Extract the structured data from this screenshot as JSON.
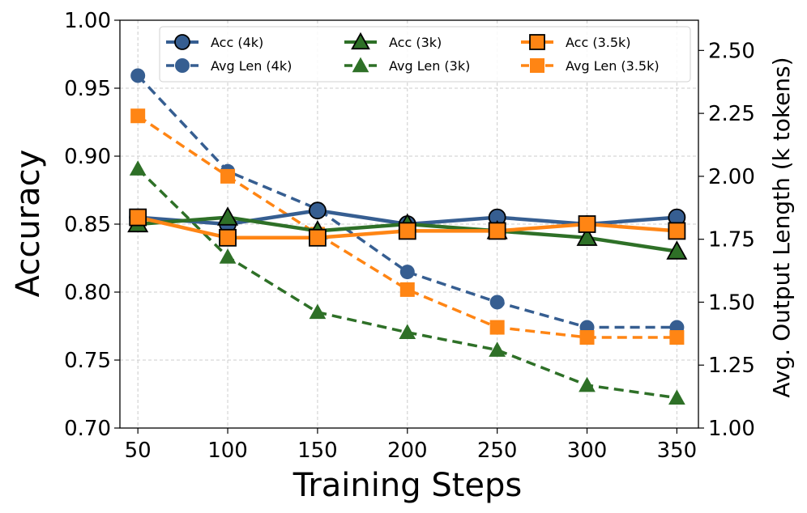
{
  "chart_data": {
    "type": "line",
    "x": [
      50,
      100,
      150,
      200,
      250,
      300,
      350
    ],
    "xlabel": "Training Steps",
    "ylabel": "Accuracy",
    "y2label": "Avg. Output Length (k tokens)",
    "xlim": [
      40,
      362
    ],
    "ylim": [
      0.7,
      1.0
    ],
    "y2lim": [
      1.0,
      2.62
    ],
    "xticks": [
      "50",
      "100",
      "150",
      "200",
      "250",
      "300",
      "350"
    ],
    "yticks": [
      "0.70",
      "0.75",
      "0.80",
      "0.85",
      "0.90",
      "0.95",
      "1.00"
    ],
    "y2ticks": [
      "1.00",
      "1.25",
      "1.50",
      "1.75",
      "2.00",
      "2.25",
      "2.50"
    ],
    "grid": true,
    "legend_position": "top",
    "series": [
      {
        "name": "Acc (4k)",
        "axis": "left",
        "style": "solid",
        "marker": "circle",
        "color": "#365E91",
        "values": [
          0.855,
          0.85,
          0.86,
          0.85,
          0.855,
          0.85,
          0.855
        ]
      },
      {
        "name": "Acc (3k)",
        "axis": "left",
        "style": "solid",
        "marker": "triangle",
        "color": "#2E7027",
        "values": [
          0.85,
          0.855,
          0.845,
          0.85,
          0.845,
          0.84,
          0.83
        ]
      },
      {
        "name": "Acc (3.5k)",
        "axis": "left",
        "style": "solid",
        "marker": "square",
        "color": "#FF8514",
        "values": [
          0.855,
          0.84,
          0.84,
          0.845,
          0.845,
          0.85,
          0.845
        ]
      },
      {
        "name": "Avg Len (4k)",
        "axis": "right",
        "style": "dashed",
        "marker": "circle",
        "color": "#365E91",
        "values": [
          2.4,
          2.02,
          1.87,
          1.62,
          1.5,
          1.4,
          1.4
        ]
      },
      {
        "name": "Avg Len (3k)",
        "axis": "right",
        "style": "dashed",
        "marker": "triangle",
        "color": "#2E7027",
        "values": [
          2.03,
          1.68,
          1.46,
          1.38,
          1.31,
          1.17,
          1.12
        ]
      },
      {
        "name": "Avg Len (3.5k)",
        "axis": "right",
        "style": "dashed",
        "marker": "square",
        "color": "#FF8514",
        "values": [
          2.24,
          2.0,
          1.77,
          1.55,
          1.4,
          1.36,
          1.36
        ]
      }
    ],
    "legend_order": [
      0,
      3,
      1,
      4,
      2,
      5
    ]
  }
}
